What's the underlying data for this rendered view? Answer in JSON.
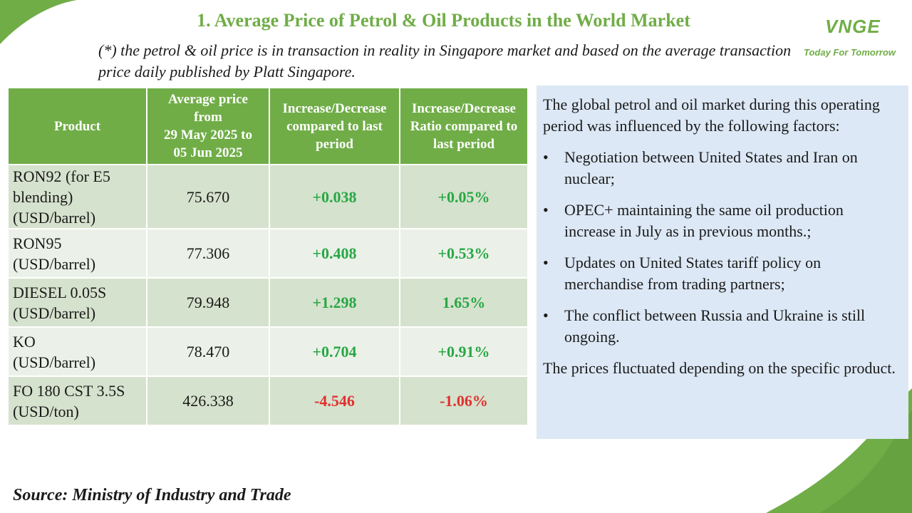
{
  "title": "1. Average Price of Petrol & Oil Products in the World Market",
  "note": "(*) the petrol & oil price is in transaction in reality in Singapore market and based on the average transaction price daily published by Platt Singapore.",
  "logo": {
    "mark": "VNGE",
    "tagline": "Today For Tomorrow"
  },
  "table": {
    "headers": {
      "product": "Product",
      "avg_l1": "Average price",
      "avg_l2": "from",
      "avg_l3": "29 May 2025 to",
      "avg_l4": "05 Jun 2025",
      "change": "Increase/Decrease compared to last period",
      "ratio": "Increase/Decrease Ratio compared to last period"
    },
    "rows": [
      {
        "product_l1": "RON92 (for E5",
        "product_l2": "blending)",
        "product_l3": "(USD/barrel)",
        "price": "75.670",
        "change": "+0.038",
        "ratio": "+0.05%"
      },
      {
        "product_l1": "RON95",
        "product_l2": "(USD/barrel)",
        "price": "77.306",
        "change": "+0.408",
        "ratio": "+0.53%"
      },
      {
        "product_l1": "DIESEL 0.05S",
        "product_l2": "(USD/barrel)",
        "price": "79.948",
        "change": "+1.298",
        "ratio": "1.65%"
      },
      {
        "product_l1": "KO",
        "product_l2": "(USD/barrel)",
        "price": "78.470",
        "change": "+0.704",
        "ratio": "+0.91%"
      },
      {
        "product_l1": "FO 180 CST 3.5S",
        "product_l2": "(USD/ton)",
        "price": "426.338",
        "change": "-4.546",
        "ratio": "-1.06%"
      }
    ]
  },
  "panel": {
    "intro": "The global petrol and oil market during this operating period was influenced by the following factors:",
    "bullet_symbol": "•",
    "factors": [
      "Negotiation between United States and Iran on nuclear;",
      "OPEC+ maintaining the same oil production increase in July as in previous months.;",
      "Updates on United States tariff policy on merchandise from trading partners;",
      "The conflict between Russia and Ukraine is still ongoing."
    ],
    "conclusion": "The prices fluctuated depending on the specific product."
  },
  "source": "Source: Ministry of Industry and Trade",
  "colors": {
    "accent_green": "#70ad47",
    "increase": "#28a745",
    "decrease": "#e03030",
    "row_dark": "#d5e2cd",
    "row_light": "#ebf1e8",
    "panel_bg": "#dce8f5"
  }
}
